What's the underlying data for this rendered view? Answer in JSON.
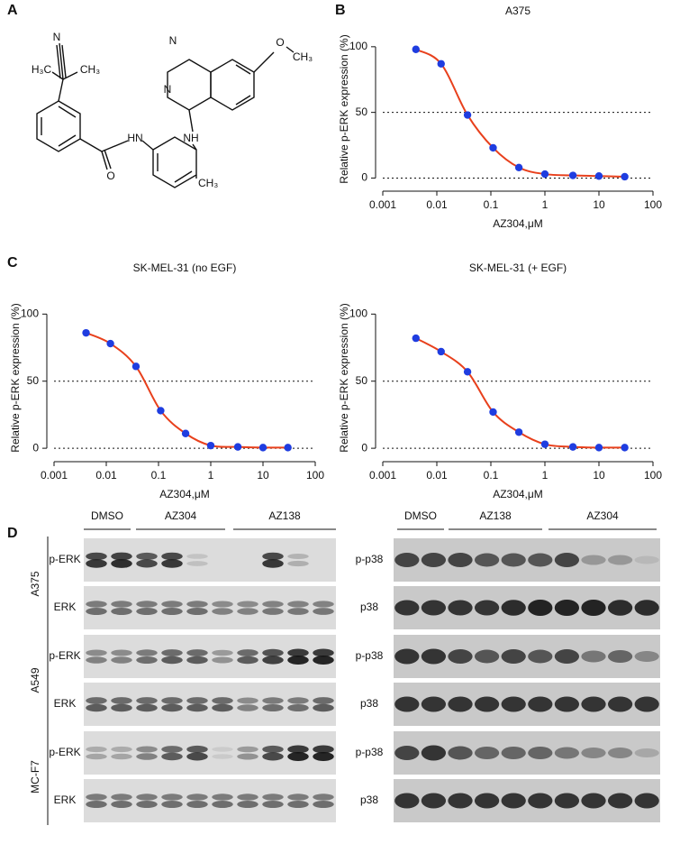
{
  "panel_labels": [
    "A",
    "B",
    "C",
    "D"
  ],
  "structure": {
    "labels": [
      "N",
      "H₃C",
      "CH₃",
      "N",
      "N",
      "O",
      "CH₃",
      "HN",
      "NH",
      "O",
      "CH₃"
    ]
  },
  "chart_data": [
    {
      "type": "scatter",
      "title": "A375",
      "x_label": "AZ304,μM",
      "y_label": "Relative p-ERK expression (%)",
      "x": [
        0.0041,
        0.012,
        0.037,
        0.11,
        0.33,
        1,
        3.3,
        10,
        30
      ],
      "values": [
        98,
        87,
        48,
        23,
        8,
        3,
        2,
        1.5,
        1
      ],
      "color": "#1f3de0",
      "line_color": "#e8401c",
      "x_scale": "log",
      "xlim": [
        0.001,
        100
      ],
      "xticks": [
        0.001,
        0.01,
        0.1,
        1,
        10,
        100
      ],
      "ylim": [
        -10,
        115
      ],
      "yticks": [
        0,
        50,
        100
      ],
      "reference_lines": [
        0,
        50
      ]
    },
    {
      "type": "scatter",
      "title": "SK-MEL-31 (no EGF)",
      "x_label": "AZ304,μM",
      "y_label": "Relative p-ERK expression (%)",
      "x": [
        0.0041,
        0.012,
        0.037,
        0.11,
        0.33,
        1,
        3.3,
        10,
        30
      ],
      "values": [
        86,
        78,
        61,
        28,
        11,
        2,
        1,
        0.5,
        0.5
      ],
      "color": "#1f3de0",
      "line_color": "#e8401c",
      "x_scale": "log",
      "xlim": [
        0.001,
        100
      ],
      "xticks": [
        0.001,
        0.01,
        0.1,
        1,
        10,
        100
      ],
      "ylim": [
        -10,
        115
      ],
      "yticks": [
        0,
        50,
        100
      ],
      "reference_lines": [
        0,
        50
      ]
    },
    {
      "type": "scatter",
      "title": "SK-MEL-31 (+ EGF)",
      "x_label": "AZ304,μM",
      "y_label": "Relative p-ERK expression (%)",
      "x": [
        0.0041,
        0.012,
        0.037,
        0.11,
        0.33,
        1,
        3.3,
        10,
        30
      ],
      "values": [
        82,
        72,
        57,
        27,
        12,
        3,
        1,
        0.5,
        0.5
      ],
      "color": "#1f3de0",
      "line_color": "#e8401c",
      "x_scale": "log",
      "xlim": [
        0.001,
        100
      ],
      "xticks": [
        0.001,
        0.01,
        0.1,
        1,
        10,
        100
      ],
      "ylim": [
        -10,
        115
      ],
      "yticks": [
        0,
        50,
        100
      ],
      "reference_lines": [
        0,
        50
      ]
    }
  ],
  "blots": {
    "left": {
      "groups": [
        "DMSO",
        "AZ304",
        "AZ138"
      ],
      "cell_lines": [
        "A375",
        "A549",
        "MC-F7"
      ],
      "rows": [
        "p-ERK",
        "ERK",
        "p-ERK",
        "ERK",
        "p-ERK",
        "ERK"
      ]
    },
    "right": {
      "groups": [
        "DMSO",
        "AZ138",
        "AZ304"
      ],
      "rows": [
        "p-p38",
        "p38",
        "p-p38",
        "p38",
        "p-p38",
        "p38"
      ]
    }
  }
}
